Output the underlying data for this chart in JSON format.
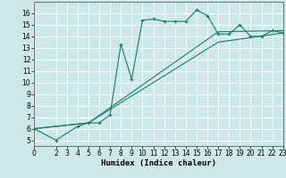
{
  "xlabel": "Humidex (Indice chaleur)",
  "bg_color": "#cce8e8",
  "line_color": "#1a7a6e",
  "grid_color": "#ffffff",
  "curve1_x": [
    0,
    2,
    4,
    5,
    6,
    7,
    8,
    9,
    10,
    11,
    12,
    13,
    14,
    15,
    16,
    17,
    18,
    19,
    20,
    21,
    22,
    23
  ],
  "curve1_y": [
    6.0,
    5.0,
    6.2,
    6.5,
    6.5,
    7.2,
    13.3,
    10.3,
    15.4,
    15.5,
    15.3,
    15.3,
    15.3,
    16.3,
    15.8,
    14.2,
    14.2,
    15.0,
    14.0,
    14.0,
    14.5,
    14.3
  ],
  "curve2_x": [
    0,
    5,
    17,
    23
  ],
  "curve2_y": [
    6.0,
    6.5,
    14.4,
    14.5
  ],
  "curve3_x": [
    0,
    5,
    17,
    23
  ],
  "curve3_y": [
    6.0,
    6.5,
    13.5,
    14.3
  ],
  "xlim": [
    0,
    23
  ],
  "ylim": [
    4.5,
    17
  ],
  "yticks": [
    5,
    6,
    7,
    8,
    9,
    10,
    11,
    12,
    13,
    14,
    15,
    16
  ],
  "xticks": [
    0,
    2,
    3,
    4,
    5,
    6,
    7,
    8,
    9,
    10,
    11,
    12,
    13,
    14,
    15,
    16,
    17,
    18,
    19,
    20,
    21,
    22,
    23
  ],
  "tick_fontsize": 5.5,
  "label_fontsize": 6.5
}
